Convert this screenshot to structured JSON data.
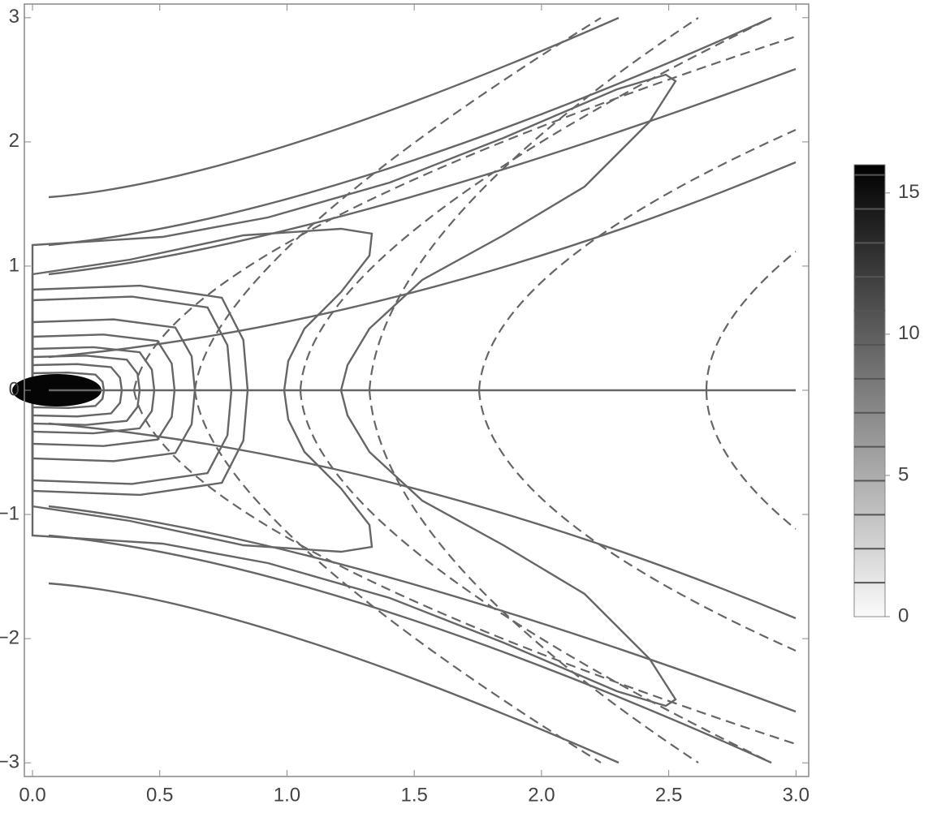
{
  "chart_data": {
    "type": "contour",
    "xlim": [
      -0.032,
      3.05
    ],
    "ylim": [
      -3.11,
      3.11
    ],
    "xticks": [
      {
        "value": 0,
        "label": "0.0"
      },
      {
        "value": 0.5,
        "label": "0.5"
      },
      {
        "value": 1,
        "label": "1.0"
      },
      {
        "value": 1.5,
        "label": "1.5"
      },
      {
        "value": 2,
        "label": "2.0"
      },
      {
        "value": 2.5,
        "label": "2.5"
      },
      {
        "value": 3,
        "label": "3.0"
      }
    ],
    "yticks": [
      {
        "value": -3,
        "label": "−3"
      },
      {
        "value": -2,
        "label": "−2"
      },
      {
        "value": -1,
        "label": "−1"
      },
      0,
      1,
      2,
      3
    ],
    "colorbar": {
      "lim": [
        0,
        16
      ],
      "ticks": [
        0,
        5,
        10,
        15
      ]
    }
  }
}
